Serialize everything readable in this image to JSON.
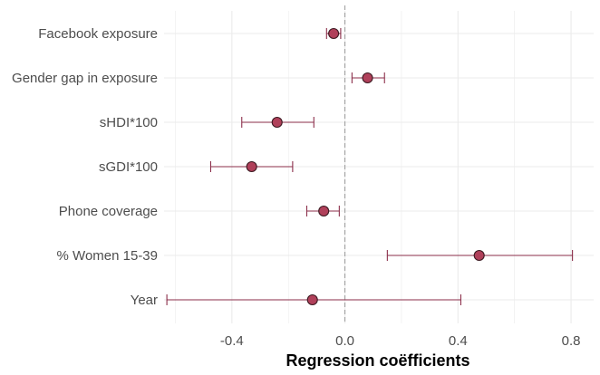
{
  "chart_data": {
    "type": "forest",
    "xlabel": "Regression coëfficients",
    "ylabel": "",
    "title": "",
    "xlim": [
      -0.64,
      0.88
    ],
    "x_ticks": [
      -0.4,
      0.0,
      0.4,
      0.8
    ],
    "x_tick_labels": [
      "-0.4",
      "0.0",
      "0.4",
      "0.8"
    ],
    "reference_line": 0.0,
    "grid": true,
    "colors": {
      "point_fill": "#b0405a",
      "point_stroke": "#3d1a22",
      "whisker": "#8b2e4a",
      "grid": "#ebebeb",
      "reference": "#9a9a9a"
    },
    "terms": [
      {
        "label": "Facebook exposure",
        "estimate": -0.04,
        "low": -0.065,
        "high": -0.015
      },
      {
        "label": "Gender gap in exposure",
        "estimate": 0.08,
        "low": 0.025,
        "high": 0.14
      },
      {
        "label": "sHDI*100",
        "estimate": -0.24,
        "low": -0.365,
        "high": -0.11
      },
      {
        "label": "sGDI*100",
        "estimate": -0.33,
        "low": -0.475,
        "high": -0.185
      },
      {
        "label": "Phone coverage",
        "estimate": -0.075,
        "low": -0.135,
        "high": -0.02
      },
      {
        "label": "% Women 15-39",
        "estimate": 0.475,
        "low": 0.15,
        "high": 0.805
      },
      {
        "label": "Year",
        "estimate": -0.115,
        "low": -0.63,
        "high": 0.41
      }
    ]
  }
}
